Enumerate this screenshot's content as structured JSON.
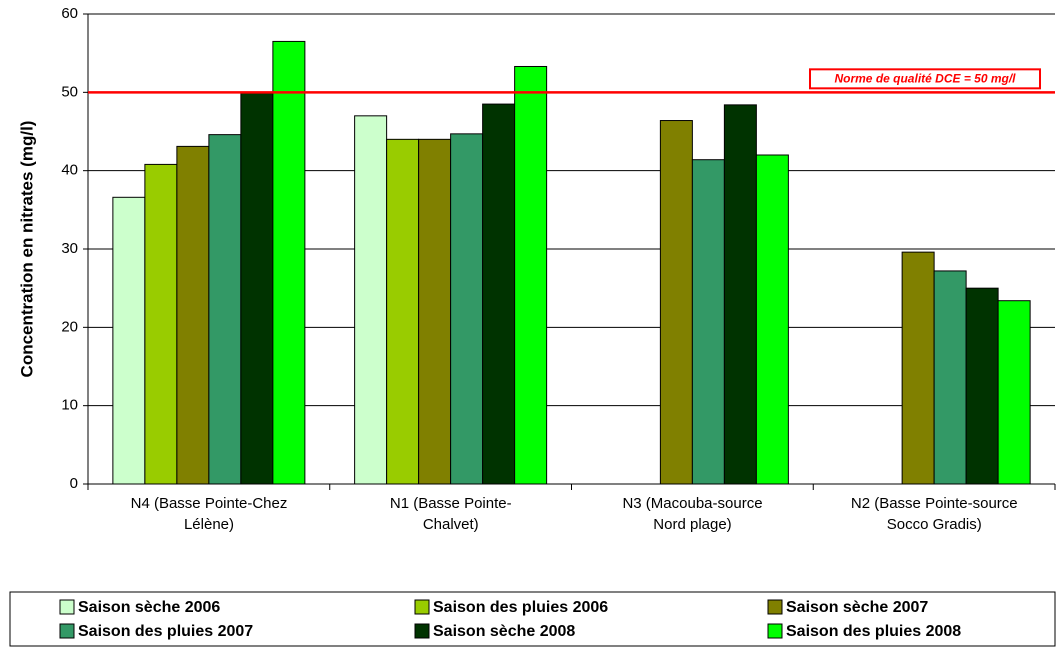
{
  "chart_data": {
    "type": "bar",
    "y_label": "Concentration en nitrates (mg/l)",
    "categories": [
      "N4 (Basse Pointe-Chez\nLélène)",
      "N1 (Basse Pointe-\nChalvet)",
      "N3 (Macouba-source\nNord plage)",
      "N2 (Basse Pointe-source\nSocco Gradis)"
    ],
    "series": [
      {
        "name": "Saison sèche 2006",
        "color": "#ccffcc",
        "values": [
          36.6,
          47.0,
          null,
          null
        ]
      },
      {
        "name": "Saison des pluies 2006",
        "color": "#99cc00",
        "values": [
          40.8,
          44.0,
          null,
          null
        ]
      },
      {
        "name": "Saison sèche 2007",
        "color": "#808000",
        "values": [
          43.1,
          44.0,
          46.4,
          29.6
        ]
      },
      {
        "name": "Saison des pluies 2007",
        "color": "#339966",
        "values": [
          44.6,
          44.7,
          41.4,
          27.2
        ]
      },
      {
        "name": "Saison sèche 2008",
        "color": "#003300",
        "values": [
          49.9,
          48.5,
          48.4,
          25.0
        ]
      },
      {
        "name": "Saison des pluies 2008",
        "color": "#00ff00",
        "values": [
          56.5,
          53.3,
          42.0,
          23.4
        ]
      }
    ],
    "ylim": [
      0,
      60
    ],
    "yticks": [
      0,
      10,
      20,
      30,
      40,
      50,
      60
    ],
    "reference_line": {
      "value": 50,
      "label": "Norme de qualité DCE = 50 mg/l",
      "color": "#ff0000"
    },
    "legend": "bottom"
  }
}
